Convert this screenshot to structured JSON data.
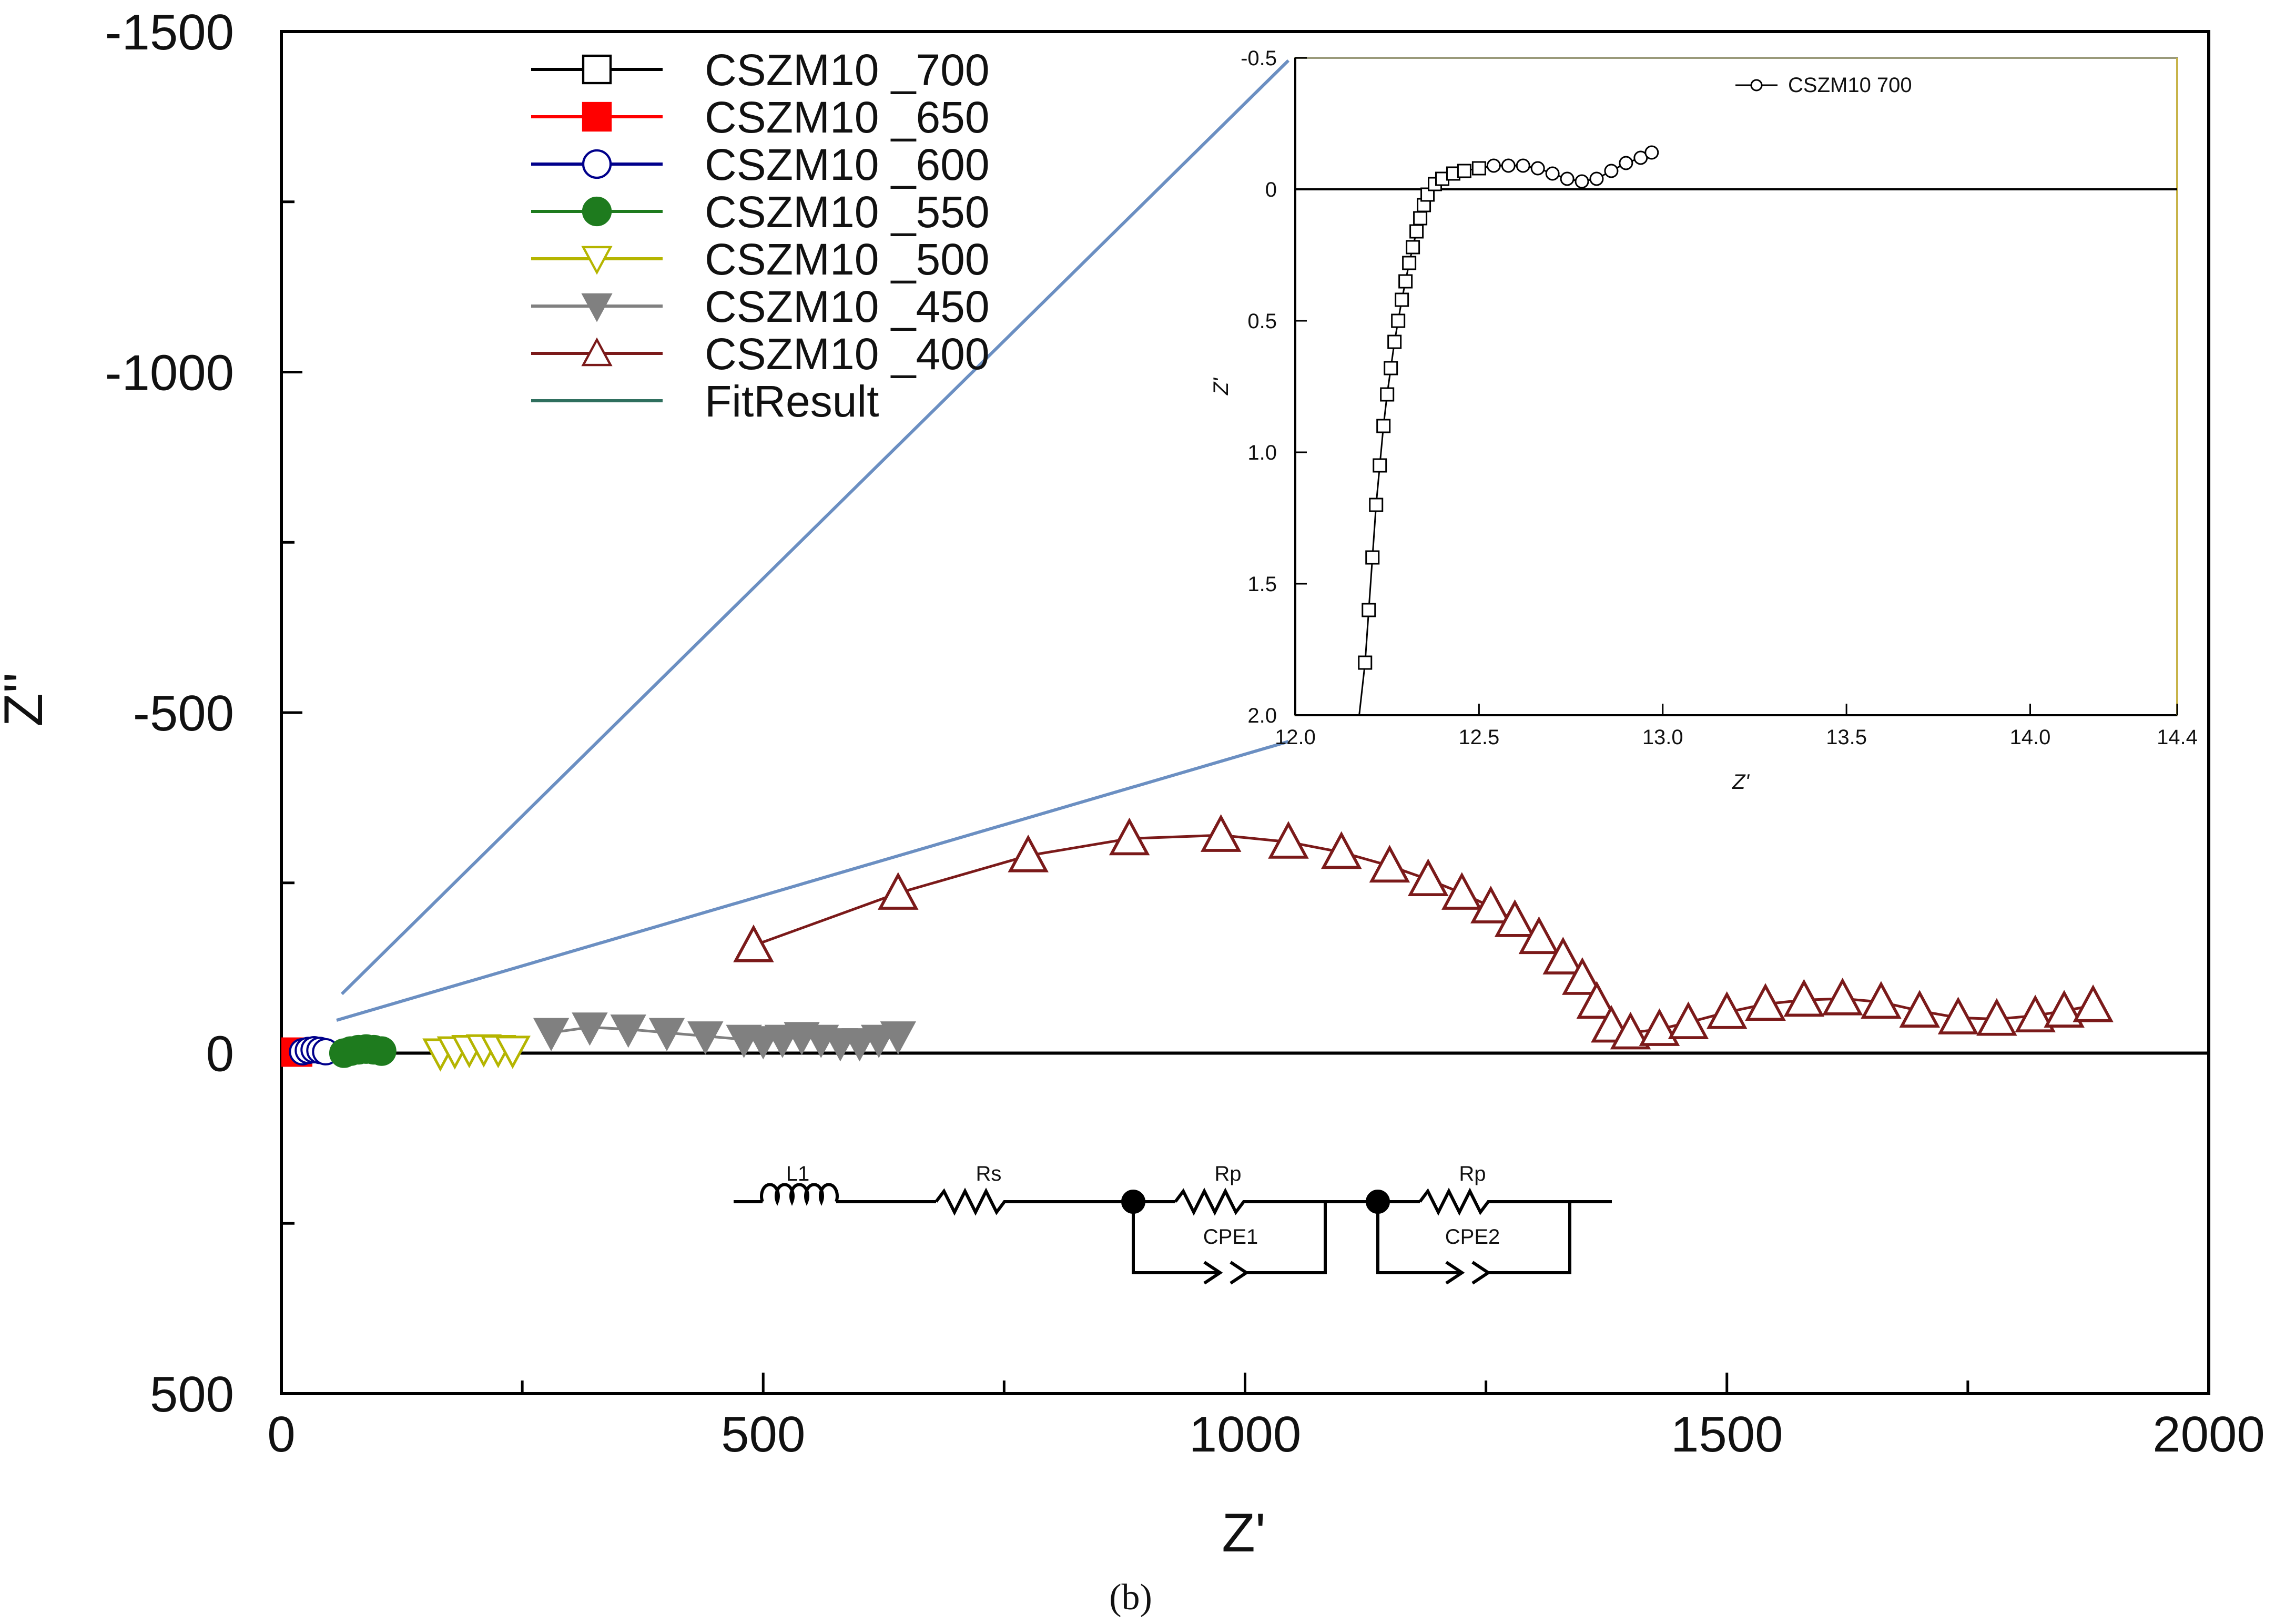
{
  "chart_data": [
    {
      "type": "scatter",
      "title": "",
      "xlabel": "Z'",
      "ylabel": "Z''",
      "xlim": [
        0,
        2000
      ],
      "ylim": [
        500,
        -1500
      ],
      "x_ticks": [
        "0",
        "500",
        "1000",
        "1500",
        "2000"
      ],
      "y_ticks": [
        "-1500",
        "-1000",
        "-500",
        "0",
        "500"
      ],
      "legend_position": "top-left",
      "series": [
        {
          "name": "CSZM10 _700",
          "marker": "square-open",
          "color": "#000000",
          "points": [
            [
              2,
              -2
            ],
            [
              6,
              -3
            ],
            [
              10,
              -2
            ]
          ]
        },
        {
          "name": "CSZM10 _650",
          "marker": "square-filled",
          "color": "#ff0000",
          "points": [
            [
              2,
              0
            ],
            [
              6,
              -2
            ],
            [
              10,
              -3
            ],
            [
              14,
              -2
            ],
            [
              18,
              0
            ]
          ]
        },
        {
          "name": "CSZM10 _600",
          "marker": "circle-open",
          "color": "#00008b",
          "points": [
            [
              22,
              -2
            ],
            [
              28,
              -4
            ],
            [
              34,
              -5
            ],
            [
              40,
              -4
            ],
            [
              46,
              -2
            ]
          ]
        },
        {
          "name": "CSZM10 _550",
          "marker": "circle-filled",
          "color": "#1e7b1e",
          "points": [
            [
              65,
              0
            ],
            [
              72,
              -3
            ],
            [
              80,
              -5
            ],
            [
              88,
              -6
            ],
            [
              96,
              -5
            ],
            [
              104,
              -3
            ]
          ]
        },
        {
          "name": "CSZM10 _500",
          "marker": "triangle-down-open",
          "color": "#b5b500",
          "points": [
            [
              165,
              0
            ],
            [
              180,
              -3
            ],
            [
              195,
              -5
            ],
            [
              210,
              -6
            ],
            [
              225,
              -5
            ],
            [
              240,
              -4
            ]
          ]
        },
        {
          "name": "CSZM10 _450",
          "marker": "triangle-down-filled",
          "color": "#808080",
          "points": [
            [
              280,
              -30
            ],
            [
              320,
              -38
            ],
            [
              360,
              -35
            ],
            [
              400,
              -30
            ],
            [
              440,
              -25
            ],
            [
              480,
              -20
            ],
            [
              500,
              -18
            ],
            [
              520,
              -20
            ],
            [
              540,
              -24
            ],
            [
              560,
              -20
            ],
            [
              580,
              -15
            ],
            [
              600,
              -15
            ],
            [
              620,
              -20
            ],
            [
              640,
              -25
            ]
          ]
        },
        {
          "name": "CSZM10 _400",
          "marker": "triangle-up-open",
          "color": "#7b1a1a",
          "points": [
            [
              490,
              -158
            ],
            [
              640,
              -235
            ],
            [
              775,
              -290
            ],
            [
              880,
              -315
            ],
            [
              975,
              -320
            ],
            [
              1045,
              -310
            ],
            [
              1100,
              -295
            ],
            [
              1150,
              -275
            ],
            [
              1190,
              -255
            ],
            [
              1225,
              -235
            ],
            [
              1255,
              -215
            ],
            [
              1280,
              -195
            ],
            [
              1305,
              -170
            ],
            [
              1330,
              -140
            ],
            [
              1350,
              -110
            ],
            [
              1365,
              -75
            ],
            [
              1380,
              -40
            ],
            [
              1400,
              -30
            ],
            [
              1430,
              -35
            ],
            [
              1460,
              -45
            ],
            [
              1500,
              -60
            ],
            [
              1540,
              -72
            ],
            [
              1580,
              -78
            ],
            [
              1620,
              -80
            ],
            [
              1660,
              -75
            ],
            [
              1700,
              -62
            ],
            [
              1740,
              -52
            ],
            [
              1780,
              -50
            ],
            [
              1820,
              -55
            ],
            [
              1850,
              -62
            ],
            [
              1880,
              -70
            ]
          ]
        },
        {
          "name": "FitResult",
          "marker": "line",
          "color": "#2f6f5e",
          "points": []
        }
      ]
    },
    {
      "type": "scatter",
      "title": "",
      "xlabel": "Z'",
      "ylabel": "Z'",
      "xlim": [
        12.0,
        14.4
      ],
      "ylim": [
        -0.5,
        2.0
      ],
      "x_ticks": [
        "12.0",
        "12.5",
        "13.0",
        "13.5",
        "14.0",
        "14.4"
      ],
      "y_ticks": [
        "-0.5",
        "0",
        "0.5",
        "1.0",
        "1.5",
        "2.0"
      ],
      "legend_position": "top-right",
      "series": [
        {
          "name": "CSZM10  700",
          "marker": "square-open",
          "color": "#000000",
          "points": [
            [
              12.19,
              1.8
            ],
            [
              12.2,
              1.6
            ],
            [
              12.21,
              1.4
            ],
            [
              12.22,
              1.2
            ],
            [
              12.23,
              1.05
            ],
            [
              12.24,
              0.9
            ],
            [
              12.25,
              0.78
            ],
            [
              12.26,
              0.68
            ],
            [
              12.27,
              0.58
            ],
            [
              12.28,
              0.5
            ],
            [
              12.29,
              0.42
            ],
            [
              12.3,
              0.35
            ],
            [
              12.31,
              0.28
            ],
            [
              12.32,
              0.22
            ],
            [
              12.33,
              0.16
            ],
            [
              12.34,
              0.11
            ],
            [
              12.35,
              0.06
            ],
            [
              12.36,
              0.02
            ],
            [
              12.38,
              -0.02
            ],
            [
              12.4,
              -0.04
            ],
            [
              12.43,
              -0.06
            ],
            [
              12.46,
              -0.07
            ],
            [
              12.5,
              -0.08
            ],
            [
              12.54,
              -0.09
            ],
            [
              12.58,
              -0.09
            ],
            [
              12.62,
              -0.09
            ],
            [
              12.66,
              -0.08
            ],
            [
              12.7,
              -0.06
            ],
            [
              12.74,
              -0.04
            ],
            [
              12.78,
              -0.03
            ],
            [
              12.82,
              -0.04
            ],
            [
              12.86,
              -0.07
            ],
            [
              12.9,
              -0.1
            ],
            [
              12.94,
              -0.12
            ],
            [
              12.97,
              -0.14
            ]
          ]
        }
      ]
    }
  ],
  "inset_legend_label": "CSZM10  700",
  "circuit": {
    "l1": "L1",
    "rs": "Rs",
    "rp1": "Rp",
    "rp2": "Rp",
    "cpe1": "CPE1",
    "cpe2": "CPE2"
  },
  "caption": "(b)"
}
